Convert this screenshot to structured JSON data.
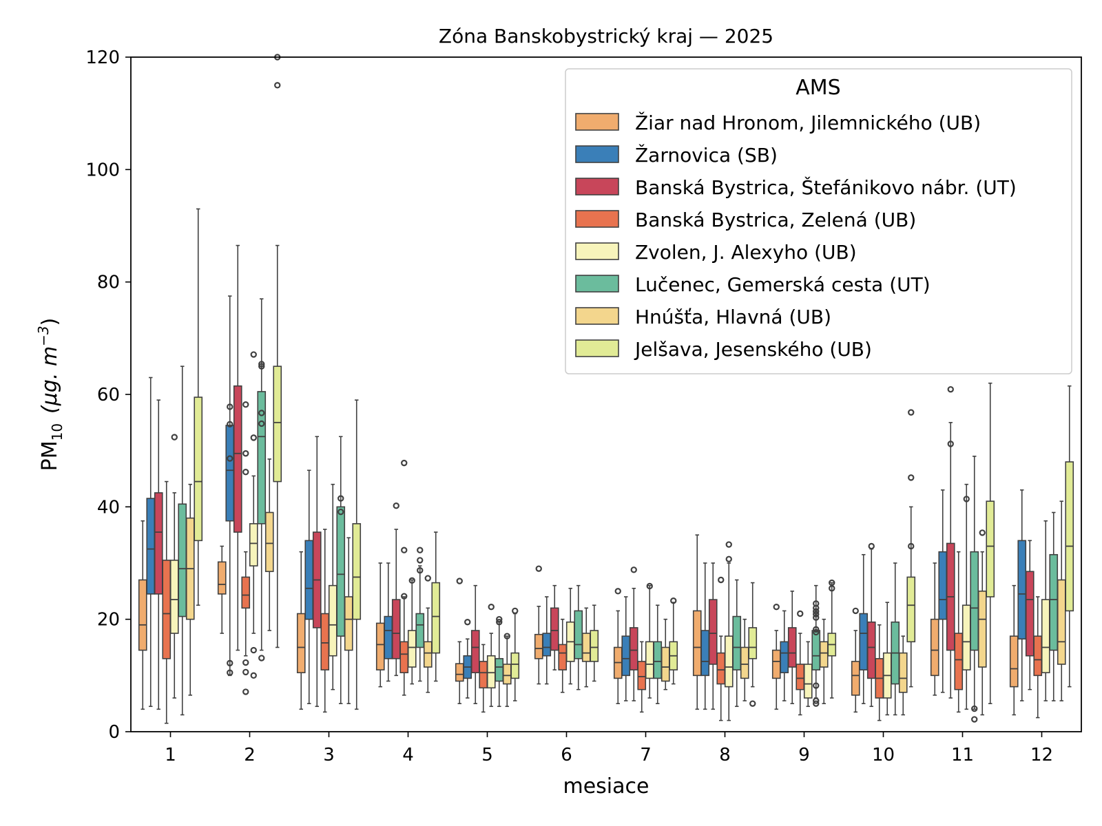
{
  "chart_data": {
    "type": "box",
    "title": "Zóna Banskobystrický kraj —  2025",
    "xlabel": "mesiace",
    "ylabel_main": "PM",
    "ylabel_sub": "10",
    "ylabel_unit": "(μg. m",
    "ylabel_sup": "−3",
    "ylabel_close": ")",
    "ylim": [
      0,
      120
    ],
    "yticks": [
      "0",
      "20",
      "40",
      "60",
      "80",
      "100",
      "120"
    ],
    "categories": [
      "1",
      "2",
      "3",
      "4",
      "5",
      "6",
      "7",
      "8",
      "9",
      "10",
      "11",
      "12"
    ],
    "legend": {
      "title": "AMS",
      "placement": "upper right",
      "entries": [
        "Žiar nad Hronom, Jilemnického (UB)",
        "Žarnovica (SB)",
        "Banská Bystrica, Štefánikovo nábr. (UT)",
        "Banská Bystrica, Zelená (UB)",
        "Zvolen, J. Alexyho (UB)",
        "Lučenec, Gemerská cesta (UT)",
        "Hnúšťa, Hlavná (UB)",
        "Jelšava, Jesenského (UB)"
      ]
    },
    "colors": [
      "#f0ac6e",
      "#3a7fb8",
      "#c8465a",
      "#e8734f",
      "#f7f4bb",
      "#6bbc9d",
      "#f3d68d",
      "#e1eb96"
    ],
    "series": [
      {
        "name": "Žiar nad Hronom, Jilemnického (UB)",
        "boxes": [
          [
            4,
            14.5,
            19,
            27,
            37.5
          ],
          [
            17.5,
            24.5,
            26.2,
            30.2,
            33
          ],
          [
            4,
            10.5,
            15,
            21,
            32
          ],
          [
            8,
            11,
            15.5,
            19.3,
            30
          ],
          [
            5,
            9,
            10.2,
            12.1,
            16
          ],
          [
            8.5,
            13,
            14.8,
            17.3,
            22.3
          ],
          [
            5,
            9.5,
            12.3,
            15,
            21.5
          ],
          [
            4,
            10,
            15,
            21.5,
            35
          ],
          [
            4,
            9.5,
            12.5,
            14.5,
            18
          ],
          [
            3.5,
            6.5,
            10,
            12.5,
            18
          ],
          [
            6.5,
            10,
            14.5,
            20,
            30
          ],
          [
            3,
            8,
            11.2,
            17,
            26
          ]
        ],
        "outliers": [
          [],
          [],
          [],
          [],
          [
            26.8
          ],
          [
            29
          ],
          [
            25
          ],
          [],
          [
            22.2
          ],
          [
            21.5
          ],
          [],
          []
        ]
      },
      {
        "name": "Žarnovica (SB)",
        "boxes": [
          [
            4.5,
            24.5,
            32.5,
            41.5,
            63
          ],
          [
            10,
            37.5,
            46.5,
            54.5,
            77.5
          ],
          [
            5,
            20,
            25.5,
            34,
            46.5
          ],
          [
            9,
            13,
            18,
            20.5,
            30
          ],
          [
            6,
            9.5,
            11.5,
            13.5,
            16.5
          ],
          [
            8.5,
            13.5,
            15,
            17.5,
            24
          ],
          [
            5.5,
            10,
            13,
            17,
            24
          ],
          [
            4,
            10,
            12.5,
            18,
            30
          ],
          [
            5.5,
            10.5,
            14,
            16,
            21.5
          ],
          [
            5,
            11,
            17.5,
            21,
            31.5
          ],
          [
            7,
            20,
            23.5,
            32,
            43
          ],
          [
            5.5,
            16.5,
            24.5,
            34,
            43
          ]
        ],
        "outliers": [
          [],
          [
            57.8,
            54.7,
            48.6,
            12.2,
            10.5
          ],
          [],
          [],
          [
            19.5
          ],
          [],
          [],
          [],
          [],
          [],
          [],
          []
        ]
      },
      {
        "name": "Banská Bystrica, Štefánikovo nábr. (UT)",
        "boxes": [
          [
            4,
            24.5,
            35.5,
            42.5,
            59
          ],
          [
            14.5,
            35.5,
            49.5,
            61.5,
            86.5
          ],
          [
            4.5,
            18.5,
            27,
            35.5,
            52.5
          ],
          [
            10,
            13,
            17.5,
            23.5,
            36
          ],
          [
            5,
            10.5,
            15,
            18,
            26
          ],
          [
            11,
            14.5,
            18,
            22,
            26
          ],
          [
            5.5,
            11,
            14.5,
            18.5,
            25.5
          ],
          [
            4,
            12,
            17.5,
            23.5,
            30
          ],
          [
            5,
            11.5,
            14,
            18.5,
            25
          ],
          [
            4.5,
            9.5,
            15,
            19.5,
            32.5
          ],
          [
            6,
            14.5,
            24,
            33.5,
            55
          ],
          [
            7.5,
            13.5,
            23.5,
            28.5,
            34
          ]
        ],
        "outliers": [
          [],
          [],
          [],
          [
            40.2
          ],
          [],
          [],
          [
            28.8
          ],
          [],
          [],
          [
            33
          ],
          [
            60.9,
            51.2
          ],
          []
        ]
      },
      {
        "name": "Banská Bystrica, Zelená (UB)",
        "boxes": [
          [
            1.5,
            13,
            21,
            30.5,
            44.5
          ],
          [
            13.5,
            22,
            24.3,
            27.5,
            32
          ],
          [
            3.5,
            11,
            15.8,
            21,
            36
          ],
          [
            6.5,
            10.5,
            13.8,
            16,
            24
          ],
          [
            3.5,
            7.8,
            10.5,
            12.5,
            15.5
          ],
          [
            7,
            11,
            14,
            15.5,
            20
          ],
          [
            3.5,
            7.5,
            9.8,
            12.5,
            16
          ],
          [
            2,
            8.5,
            11,
            14,
            17
          ],
          [
            3,
            7.5,
            9.5,
            12,
            17.5
          ],
          [
            2,
            6,
            9.5,
            13,
            19
          ],
          [
            3.5,
            7.5,
            12.8,
            17.5,
            32
          ],
          [
            2.5,
            10,
            12.8,
            17,
            24
          ]
        ],
        "outliers": [
          [],
          [
            58.2,
            49.5,
            46.2,
            12.3,
            10.6,
            7.1
          ],
          [],
          [
            47.8,
            32.3,
            24.1
          ],
          [],
          [],
          [],
          [
            27
          ],
          [
            21
          ],
          [],
          [],
          []
        ]
      },
      {
        "name": "Zvolen, J. Alexyho (UB)",
        "boxes": [
          [
            6,
            17.5,
            23.5,
            30.5,
            42.5
          ],
          [
            17.5,
            29.5,
            33.5,
            37,
            45.5
          ],
          [
            7.5,
            13.5,
            19,
            26,
            44
          ],
          [
            8.5,
            11.5,
            15,
            18,
            27
          ],
          [
            4.5,
            7.8,
            10.5,
            13.5,
            17.5
          ],
          [
            8.5,
            12.5,
            16,
            19.5,
            25.5
          ],
          [
            6,
            9.5,
            12,
            16,
            26
          ],
          [
            2,
            8,
            11.5,
            17,
            30
          ],
          [
            4.5,
            6,
            8.5,
            12,
            16
          ],
          [
            3,
            6,
            10,
            14,
            23
          ],
          [
            4,
            11,
            16,
            22.5,
            44
          ],
          [
            5.5,
            10.5,
            15,
            23.5,
            37.5
          ]
        ],
        "outliers": [
          [
            52.4
          ],
          [
            67.1,
            52.3,
            14.5,
            10
          ],
          [],
          [
            26.9
          ],
          [
            22.2
          ],
          [],
          [
            25.9
          ],
          [
            33.3,
            30.7
          ],
          [],
          [],
          [
            41.4
          ],
          []
        ]
      },
      {
        "name": "Lučenec, Gemerská cesta (UT)",
        "boxes": [
          [
            3,
            20.5,
            29,
            40.5,
            65
          ],
          [
            14.5,
            37,
            52.5,
            60.5,
            77
          ],
          [
            5,
            17,
            28,
            40,
            52.5
          ],
          [
            9,
            15,
            19,
            21,
            29.5
          ],
          [
            4.5,
            9,
            11.5,
            13,
            19.5
          ],
          [
            7.5,
            13,
            15.5,
            21.5,
            26
          ],
          [
            5,
            9.5,
            12.5,
            16,
            22.5
          ],
          [
            4.5,
            11,
            15,
            20.5,
            27
          ],
          [
            6,
            11,
            13.5,
            18,
            26
          ],
          [
            3,
            8.5,
            14,
            19.5,
            30
          ],
          [
            4,
            14.5,
            22,
            32,
            49
          ],
          [
            5.5,
            14.5,
            23.5,
            31.5,
            39
          ]
        ],
        "outliers": [
          [],
          [
            65.4,
            65,
            56.7,
            54.8,
            13.1
          ],
          [
            41.5,
            39.1
          ],
          [
            32.3,
            30.5,
            28.7
          ],
          [
            20,
            19.5
          ],
          [],
          [],
          [],
          [
            22.8,
            22,
            21.4,
            20.9,
            20.3,
            18.2,
            17.7,
            8.2,
            5.5,
            5
          ],
          [],
          [
            4.1,
            2.2
          ],
          []
        ]
      },
      {
        "name": "Hnúšťa, Hlavná (UB)",
        "boxes": [
          [
            6.5,
            20,
            29,
            38,
            44
          ],
          [
            18,
            28.5,
            33.5,
            39,
            48.5
          ],
          [
            5,
            14.5,
            20,
            24,
            34.5
          ],
          [
            7,
            11.5,
            14,
            16,
            22
          ],
          [
            4.5,
            8.5,
            10,
            12,
            17
          ],
          [
            8,
            12.5,
            14,
            17.5,
            22
          ],
          [
            7.5,
            9,
            11.5,
            15,
            20
          ],
          [
            5.5,
            9.5,
            12,
            15,
            20
          ],
          [
            5,
            11.5,
            14,
            16,
            20
          ],
          [
            3,
            7,
            9.5,
            14,
            17
          ],
          [
            3,
            11.5,
            20,
            25,
            32
          ],
          [
            5.5,
            12,
            16,
            27,
            41
          ]
        ],
        "outliers": [
          [],
          [],
          [],
          [
            27.3
          ],
          [
            17
          ],
          [],
          [],
          [],
          [],
          [],
          [
            35.4
          ],
          []
        ]
      },
      {
        "name": "Jelšava, Jesenského (UB)",
        "boxes": [
          [
            22.5,
            34,
            44.5,
            59.5,
            93
          ],
          [
            15,
            44.5,
            55,
            65,
            86.5
          ],
          [
            4,
            20,
            27.5,
            37,
            59
          ],
          [
            9,
            14,
            20.5,
            26.5,
            35.5
          ],
          [
            5.5,
            9.5,
            12,
            14,
            21
          ],
          [
            9,
            12.5,
            15,
            18,
            22.5
          ],
          [
            8.5,
            11,
            13.5,
            16,
            23
          ],
          [
            8,
            13,
            15,
            18.5,
            26.5
          ],
          [
            6,
            13.5,
            15.5,
            17.5,
            26.5
          ],
          [
            8,
            16,
            22.5,
            27.5,
            40
          ],
          [
            5,
            24,
            33,
            41,
            62
          ],
          [
            8,
            21.5,
            33,
            48,
            61.5
          ]
        ],
        "outliers": [
          [],
          [
            120,
            115
          ],
          [],
          [],
          [
            21.5
          ],
          [],
          [
            23.3
          ],
          [
            5
          ],
          [
            26.5,
            25.5
          ],
          [
            56.8,
            45.2,
            33
          ],
          [],
          []
        ]
      }
    ]
  }
}
